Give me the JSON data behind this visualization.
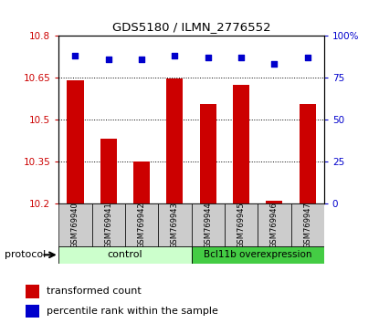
{
  "title": "GDS5180 / ILMN_2776552",
  "samples": [
    "GSM769940",
    "GSM769941",
    "GSM769942",
    "GSM769943",
    "GSM769944",
    "GSM769945",
    "GSM769946",
    "GSM769947"
  ],
  "transformed_counts": [
    10.64,
    10.43,
    10.35,
    10.645,
    10.555,
    10.625,
    10.21,
    10.555
  ],
  "percentile_ranks": [
    88,
    86,
    86,
    88,
    87,
    87,
    83,
    87
  ],
  "ylim_left": [
    10.2,
    10.8
  ],
  "ylim_right": [
    0,
    100
  ],
  "yticks_left": [
    10.2,
    10.35,
    10.5,
    10.65,
    10.8
  ],
  "yticks_right": [
    0,
    25,
    50,
    75,
    100
  ],
  "ytick_labels_left": [
    "10.2",
    "10.35",
    "10.5",
    "10.65",
    "10.8"
  ],
  "ytick_labels_right": [
    "0",
    "25",
    "50",
    "75",
    "100%"
  ],
  "bar_color": "#cc0000",
  "dot_color": "#0000cc",
  "bar_width": 0.5,
  "control_label": "control",
  "overexpression_label": "Bcl11b overexpression",
  "control_color": "#ccffcc",
  "overexpression_color": "#44cc44",
  "protocol_label": "protocol",
  "legend_bar_label": "transformed count",
  "legend_dot_label": "percentile rank within the sample"
}
